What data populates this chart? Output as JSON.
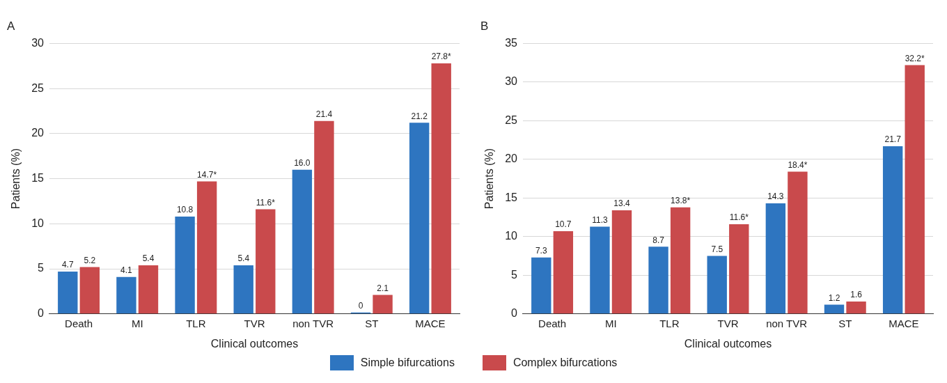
{
  "chart_data": [
    {
      "type": "bar",
      "title": "A",
      "xlabel": "Clinical outcomes",
      "ylabel": "Patients (%)",
      "categories": [
        "Death",
        "MI",
        "TLR",
        "TVR",
        "non TVR",
        "ST",
        "MACE"
      ],
      "ylim": [
        0,
        30
      ],
      "yticks": [
        0,
        5,
        10,
        15,
        20,
        25,
        30
      ],
      "grid": "y",
      "legend": "bottom",
      "series": [
        {
          "name": "Simple bifurcations",
          "color": "#2e75c0",
          "values": [
            4.7,
            4.1,
            10.8,
            5.4,
            16.0,
            0,
            21.2
          ],
          "value_labels": [
            "4.7",
            "4.1",
            "10.8",
            "5.4",
            "16.0",
            "0",
            "21.2"
          ]
        },
        {
          "name": "Complex bifurcations",
          "color": "#c94a4c",
          "values": [
            5.2,
            5.4,
            14.7,
            11.6,
            21.4,
            2.1,
            27.8
          ],
          "value_labels": [
            "5.2",
            "5.4",
            "14.7*",
            "11.6*",
            "21.4",
            "2.1",
            "27.8*"
          ]
        }
      ]
    },
    {
      "type": "bar",
      "title": "B",
      "xlabel": "Clinical outcomes",
      "ylabel": "Patients (%)",
      "categories": [
        "Death",
        "MI",
        "TLR",
        "TVR",
        "non TVR",
        "ST",
        "MACE"
      ],
      "ylim": [
        0,
        35
      ],
      "yticks": [
        0,
        5,
        10,
        15,
        20,
        25,
        30,
        35
      ],
      "grid": "y",
      "series": [
        {
          "color": "#2e75c0",
          "values": [
            7.3,
            11.3,
            8.7,
            7.5,
            14.3,
            1.2,
            21.7
          ],
          "value_labels": [
            "7.3",
            "11.3",
            "8.7",
            "7.5",
            "14.3",
            "1.2",
            "21.7"
          ]
        },
        {
          "color": "#c94a4c",
          "values": [
            10.7,
            13.4,
            13.8,
            11.6,
            18.4,
            1.6,
            32.2
          ],
          "value_labels": [
            "10.7",
            "13.4",
            "13.8*",
            "11.6*",
            "18.4*",
            "1.6",
            "32.2*"
          ]
        }
      ]
    }
  ]
}
